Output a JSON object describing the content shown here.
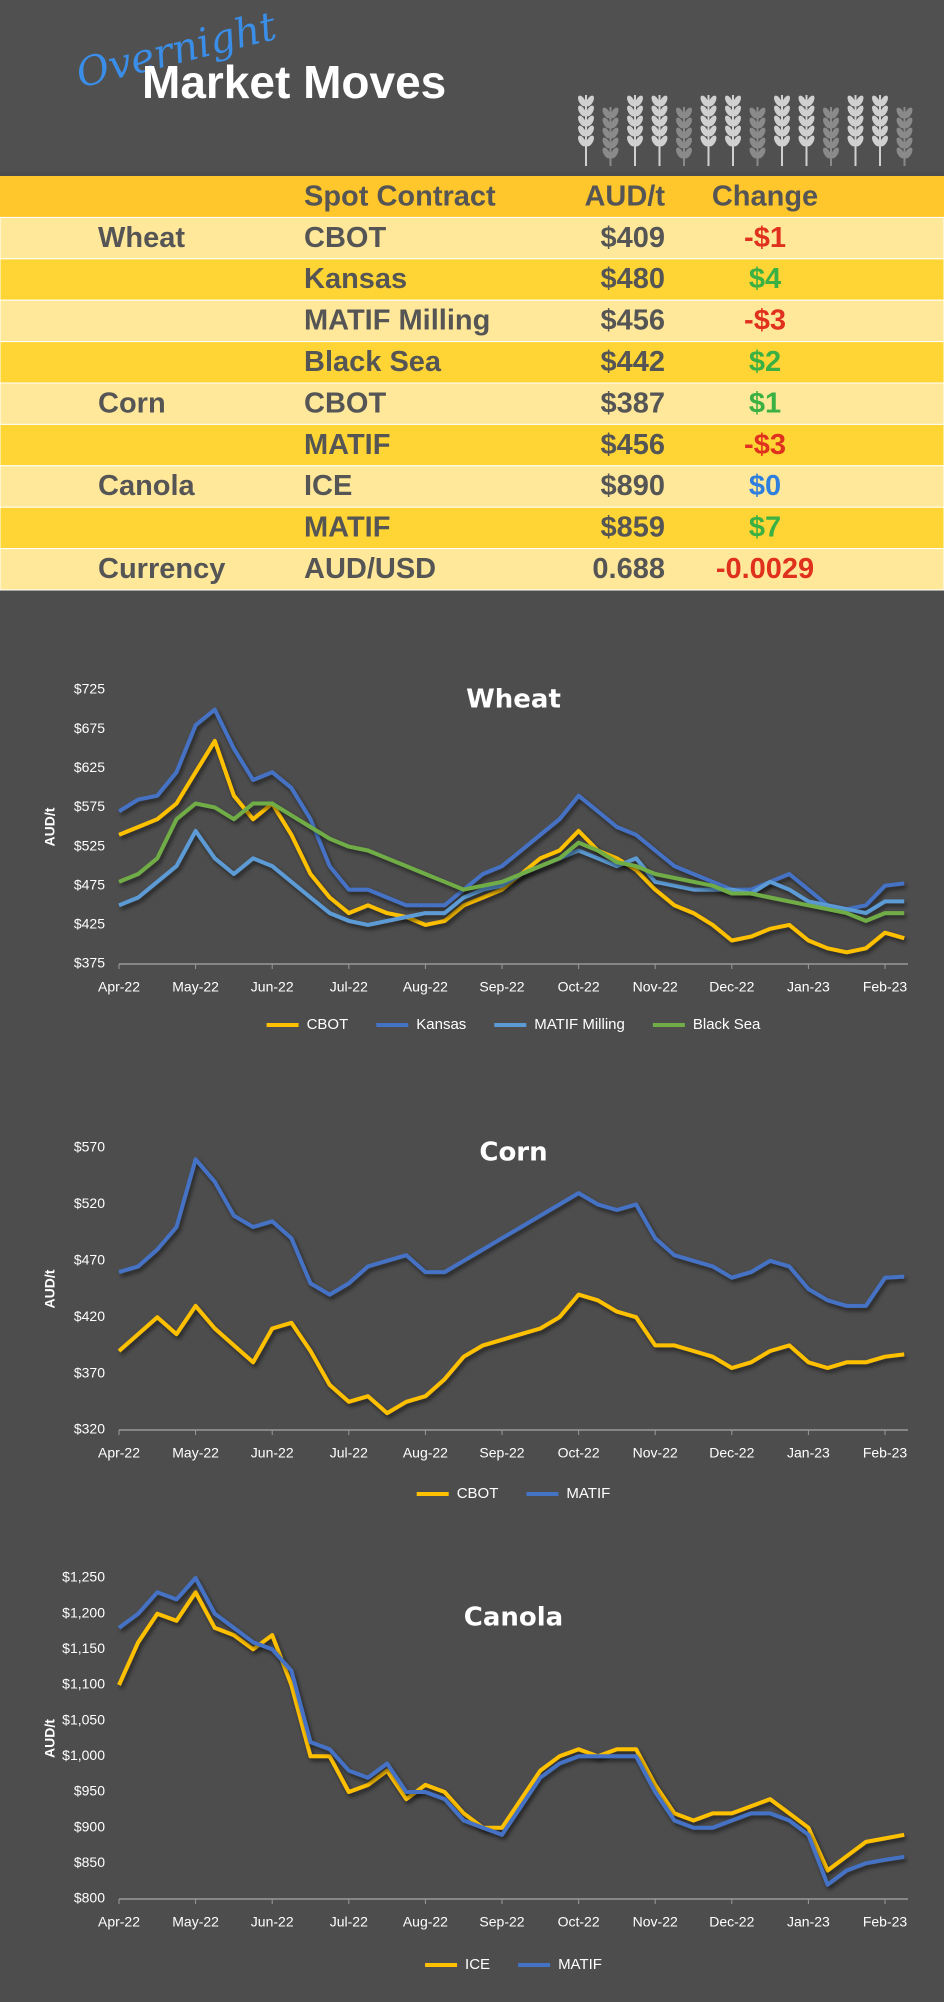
{
  "header": {
    "script_title": "Overnight",
    "title": "Market Moves"
  },
  "table": {
    "columns": [
      "Spot Contract",
      "AUD/t",
      "Change"
    ],
    "rows": [
      {
        "commodity": "Wheat",
        "contract": "CBOT",
        "price": "$409",
        "change": "-$1",
        "color": "#e0301e"
      },
      {
        "contract": "Kansas",
        "price": "$480",
        "change": "$4",
        "color": "#3bb143"
      },
      {
        "contract": "MATIF Milling",
        "price": "$456",
        "change": "-$3",
        "color": "#e0301e"
      },
      {
        "contract": "Black Sea",
        "price": "$442",
        "change": "$2",
        "color": "#3bb143"
      },
      {
        "commodity": "Corn",
        "contract": "CBOT",
        "price": "$387",
        "change": "$1",
        "color": "#3bb143"
      },
      {
        "contract": "MATIF",
        "price": "$456",
        "change": "-$3",
        "color": "#e0301e"
      },
      {
        "commodity": "Canola",
        "contract": "ICE",
        "price": "$890",
        "change": "$0",
        "color": "#2f7fdf"
      },
      {
        "contract": "MATIF",
        "price": "$859",
        "change": "$7",
        "color": "#3bb143"
      },
      {
        "commodity": "Currency",
        "contract": "AUD/USD",
        "price": "0.688",
        "change": "-0.0029",
        "color": "#e0301e"
      }
    ]
  },
  "chart_data": [
    {
      "type": "line",
      "title": "Wheat",
      "y_label": "AUD/t",
      "x": [
        0,
        0.25,
        0.5,
        0.75,
        1,
        1.25,
        1.5,
        1.75,
        2,
        2.25,
        2.5,
        2.75,
        3,
        3.25,
        3.5,
        3.75,
        4,
        4.25,
        4.5,
        4.75,
        5,
        5.25,
        5.5,
        5.75,
        6,
        6.25,
        6.5,
        6.75,
        7,
        7.25,
        7.5,
        7.75,
        8,
        8.25,
        8.5,
        8.75,
        9,
        9.25,
        9.5,
        9.75,
        10,
        10.25
      ],
      "xlim": [
        0,
        10.3
      ],
      "xticks": [
        {
          "value": 0,
          "label": "Apr-22"
        },
        {
          "value": 1,
          "label": "May-22"
        },
        {
          "value": 2,
          "label": "Jun-22"
        },
        {
          "value": 3,
          "label": "Jul-22"
        },
        {
          "value": 4,
          "label": "Aug-22"
        },
        {
          "value": 5,
          "label": "Sep-22"
        },
        {
          "value": 6,
          "label": "Oct-22"
        },
        {
          "value": 7,
          "label": "Nov-22"
        },
        {
          "value": 8,
          "label": "Dec-22"
        },
        {
          "value": 9,
          "label": "Jan-23"
        },
        {
          "value": 10,
          "label": "Feb-23"
        }
      ],
      "ylim": [
        375,
        725
      ],
      "yticks": [
        {
          "value": 375,
          "label": "$375"
        },
        {
          "value": 425,
          "label": "$425"
        },
        {
          "value": 475,
          "label": "$475"
        },
        {
          "value": 525,
          "label": "$525"
        },
        {
          "value": 575,
          "label": "$575"
        },
        {
          "value": 625,
          "label": "$625"
        },
        {
          "value": 675,
          "label": "$675"
        },
        {
          "value": 725,
          "label": "$725"
        }
      ],
      "grid": false,
      "legend": "bottom",
      "series": [
        {
          "name": "CBOT",
          "color": "#ffc000",
          "values": [
            540,
            550,
            560,
            580,
            620,
            660,
            590,
            560,
            580,
            540,
            490,
            460,
            440,
            450,
            440,
            435,
            425,
            430,
            450,
            460,
            470,
            490,
            510,
            520,
            545,
            520,
            510,
            495,
            470,
            450,
            440,
            425,
            405,
            410,
            420,
            425,
            405,
            395,
            390,
            395,
            415,
            408
          ]
        },
        {
          "name": "Kansas",
          "color": "#4472c4",
          "values": [
            570,
            585,
            590,
            620,
            680,
            700,
            650,
            610,
            620,
            600,
            560,
            500,
            470,
            470,
            460,
            450,
            450,
            450,
            470,
            490,
            500,
            520,
            540,
            560,
            590,
            570,
            550,
            540,
            520,
            500,
            490,
            480,
            470,
            470,
            480,
            490,
            470,
            450,
            445,
            450,
            475,
            478
          ]
        },
        {
          "name": "MATIF Milling",
          "color": "#5b9bd5",
          "values": [
            450,
            460,
            480,
            500,
            545,
            510,
            490,
            510,
            500,
            480,
            460,
            440,
            430,
            425,
            430,
            435,
            440,
            440,
            460,
            470,
            475,
            490,
            500,
            510,
            520,
            510,
            500,
            510,
            480,
            475,
            470,
            470,
            470,
            465,
            480,
            470,
            455,
            450,
            445,
            440,
            455,
            455
          ]
        },
        {
          "name": "Black Sea",
          "color": "#70ad47",
          "values": [
            480,
            490,
            510,
            560,
            580,
            575,
            560,
            580,
            580,
            565,
            550,
            535,
            525,
            520,
            510,
            500,
            490,
            480,
            470,
            475,
            480,
            490,
            500,
            510,
            530,
            520,
            505,
            500,
            490,
            485,
            480,
            475,
            465,
            465,
            460,
            455,
            450,
            445,
            440,
            430,
            440,
            440
          ]
        }
      ]
    },
    {
      "type": "line",
      "title": "Corn",
      "y_label": "AUD/t",
      "x": [
        0,
        0.25,
        0.5,
        0.75,
        1,
        1.25,
        1.5,
        1.75,
        2,
        2.25,
        2.5,
        2.75,
        3,
        3.25,
        3.5,
        3.75,
        4,
        4.25,
        4.5,
        4.75,
        5,
        5.25,
        5.5,
        5.75,
        6,
        6.25,
        6.5,
        6.75,
        7,
        7.25,
        7.5,
        7.75,
        8,
        8.25,
        8.5,
        8.75,
        9,
        9.25,
        9.5,
        9.75,
        10,
        10.25
      ],
      "xlim": [
        0,
        10.3
      ],
      "xticks": [
        {
          "value": 0,
          "label": "Apr-22"
        },
        {
          "value": 1,
          "label": "May-22"
        },
        {
          "value": 2,
          "label": "Jun-22"
        },
        {
          "value": 3,
          "label": "Jul-22"
        },
        {
          "value": 4,
          "label": "Aug-22"
        },
        {
          "value": 5,
          "label": "Sep-22"
        },
        {
          "value": 6,
          "label": "Oct-22"
        },
        {
          "value": 7,
          "label": "Nov-22"
        },
        {
          "value": 8,
          "label": "Dec-22"
        },
        {
          "value": 9,
          "label": "Jan-23"
        },
        {
          "value": 10,
          "label": "Feb-23"
        }
      ],
      "ylim": [
        320,
        570
      ],
      "yticks": [
        {
          "value": 320,
          "label": "$320"
        },
        {
          "value": 370,
          "label": "$370"
        },
        {
          "value": 420,
          "label": "$420"
        },
        {
          "value": 470,
          "label": "$470"
        },
        {
          "value": 520,
          "label": "$520"
        },
        {
          "value": 570,
          "label": "$570"
        }
      ],
      "grid": false,
      "legend": "bottom",
      "series": [
        {
          "name": "CBOT",
          "color": "#ffc000",
          "values": [
            390,
            405,
            420,
            405,
            430,
            410,
            395,
            380,
            410,
            415,
            390,
            360,
            345,
            350,
            335,
            345,
            350,
            365,
            385,
            395,
            400,
            405,
            410,
            420,
            440,
            435,
            425,
            420,
            395,
            395,
            390,
            385,
            375,
            380,
            390,
            395,
            380,
            375,
            380,
            380,
            385,
            387
          ]
        },
        {
          "name": "MATIF",
          "color": "#4472c4",
          "values": [
            460,
            465,
            480,
            500,
            560,
            540,
            510,
            500,
            505,
            490,
            450,
            440,
            450,
            465,
            470,
            475,
            460,
            460,
            470,
            480,
            490,
            500,
            510,
            520,
            530,
            520,
            515,
            520,
            490,
            475,
            470,
            465,
            455,
            460,
            470,
            465,
            445,
            435,
            430,
            430,
            455,
            456
          ]
        }
      ]
    },
    {
      "type": "line",
      "title": "Canola",
      "y_label": "AUD/t",
      "x": [
        0,
        0.25,
        0.5,
        0.75,
        1,
        1.25,
        1.5,
        1.75,
        2,
        2.25,
        2.5,
        2.75,
        3,
        3.25,
        3.5,
        3.75,
        4,
        4.25,
        4.5,
        4.75,
        5,
        5.25,
        5.5,
        5.75,
        6,
        6.25,
        6.5,
        6.75,
        7,
        7.25,
        7.5,
        7.75,
        8,
        8.25,
        8.5,
        8.75,
        9,
        9.25,
        9.5,
        9.75,
        10,
        10.25
      ],
      "xlim": [
        0,
        10.3
      ],
      "xticks": [
        {
          "value": 0,
          "label": "Apr-22"
        },
        {
          "value": 1,
          "label": "May-22"
        },
        {
          "value": 2,
          "label": "Jun-22"
        },
        {
          "value": 3,
          "label": "Jul-22"
        },
        {
          "value": 4,
          "label": "Aug-22"
        },
        {
          "value": 5,
          "label": "Sep-22"
        },
        {
          "value": 6,
          "label": "Oct-22"
        },
        {
          "value": 7,
          "label": "Nov-22"
        },
        {
          "value": 8,
          "label": "Dec-22"
        },
        {
          "value": 9,
          "label": "Jan-23"
        },
        {
          "value": 10,
          "label": "Feb-23"
        }
      ],
      "ylim": [
        800,
        1250
      ],
      "yticks": [
        {
          "value": 800,
          "label": "$800"
        },
        {
          "value": 850,
          "label": "$850"
        },
        {
          "value": 900,
          "label": "$900"
        },
        {
          "value": 950,
          "label": "$950"
        },
        {
          "value": 1000,
          "label": "$1,000"
        },
        {
          "value": 1050,
          "label": "$1,050"
        },
        {
          "value": 1100,
          "label": "$1,100"
        },
        {
          "value": 1150,
          "label": "$1,150"
        },
        {
          "value": 1200,
          "label": "$1,200"
        },
        {
          "value": 1250,
          "label": "$1,250"
        }
      ],
      "grid": false,
      "legend": "bottom",
      "series": [
        {
          "name": "ICE",
          "color": "#ffc000",
          "values": [
            1100,
            1160,
            1200,
            1190,
            1230,
            1180,
            1170,
            1150,
            1170,
            1100,
            1000,
            1000,
            950,
            960,
            980,
            940,
            960,
            950,
            920,
            900,
            900,
            940,
            980,
            1000,
            1010,
            1000,
            1010,
            1010,
            960,
            920,
            910,
            920,
            920,
            930,
            940,
            920,
            900,
            840,
            860,
            880,
            885,
            890
          ]
        },
        {
          "name": "MATIF",
          "color": "#4472c4",
          "values": [
            1180,
            1200,
            1230,
            1220,
            1250,
            1200,
            1180,
            1160,
            1150,
            1120,
            1020,
            1010,
            980,
            970,
            990,
            950,
            950,
            940,
            910,
            900,
            890,
            930,
            970,
            990,
            1000,
            1000,
            1000,
            1000,
            950,
            910,
            900,
            900,
            910,
            920,
            920,
            910,
            890,
            820,
            840,
            850,
            855,
            859
          ]
        }
      ]
    }
  ]
}
